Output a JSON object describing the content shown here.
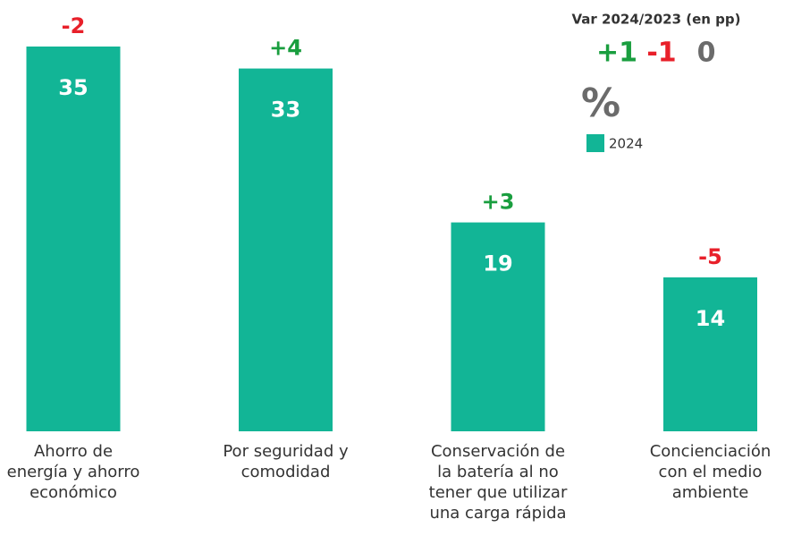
{
  "chart_data": {
    "type": "bar",
    "categories": [
      "Ahorro de\nenergía y ahorro\neconómico",
      "Por seguridad y\ncomodidad",
      "Conservación de\nla batería al no\ntener que utilizar\nuna carga rápida",
      "Concienciación\ncon el medio\nambiente"
    ],
    "series": [
      {
        "name": "2024",
        "color": "#12b596",
        "values": [
          35,
          33,
          19,
          14
        ]
      }
    ],
    "unit": "%",
    "variation": {
      "values": [
        -2,
        4,
        3,
        -5
      ],
      "value_labels": [
        "-2",
        "+4",
        "+3",
        "-5"
      ]
    },
    "variation_legend": {
      "title": "Var 2024/2023 (en pp)",
      "items": [
        {
          "value": 1,
          "label": "+1",
          "color": "#1a9e3f"
        },
        {
          "value": -1,
          "label": "-1",
          "color": "#e8202a"
        },
        {
          "value": 0,
          "label": "0",
          "color": "#6b6b6b"
        }
      ]
    },
    "ylim": [
      0,
      35
    ]
  }
}
